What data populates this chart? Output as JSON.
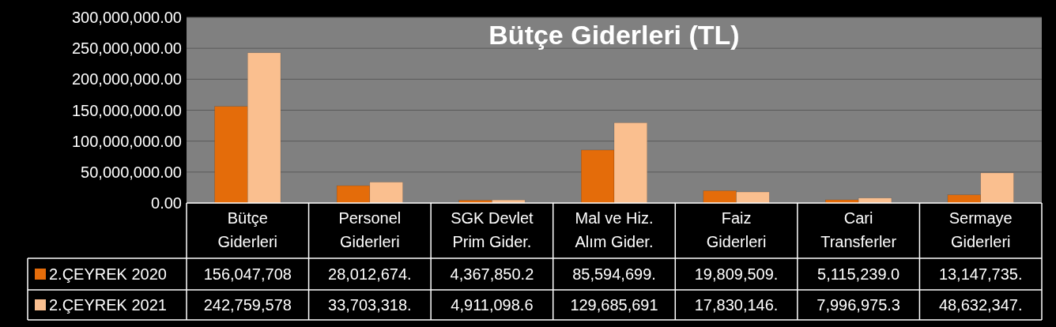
{
  "chart_data": {
    "type": "bar",
    "title": "Bütçe Giderleri (TL)",
    "categories": [
      "Bütçe\nGiderleri",
      "Personel\nGiderleri",
      "SGK Devlet\nPrim Gider.",
      "Mal ve Hiz.\nAlım Gider.",
      "Faiz\nGiderleri",
      "Cari\nTransferler",
      "Sermaye\nGiderleri"
    ],
    "series": [
      {
        "name": "2.ÇEYREK 2020",
        "color": "#e46c0a",
        "values": [
          156047708,
          28012674,
          4367850.2,
          85594699,
          19809509,
          5115239.0,
          13147735
        ],
        "value_labels": [
          "156,047,708",
          "28,012,674.",
          "4,367,850.2",
          "85,594,699.",
          "19,809,509.",
          "5,115,239.0",
          "13,147,735."
        ]
      },
      {
        "name": "2.ÇEYREK 2021",
        "color": "#fabf8f",
        "values": [
          242759578,
          33703318,
          4911098.6,
          129685691,
          17830146,
          7996975.3,
          48632347
        ],
        "value_labels": [
          "242,759,578",
          "33,703,318.",
          "4,911,098.6",
          "129,685,691",
          "17,830,146.",
          "7,996,975.3",
          "48,632,347."
        ]
      }
    ],
    "ylim": [
      0,
      300000000
    ],
    "yticks": [
      {
        "value": 0,
        "label": "0.00"
      },
      {
        "value": 50000000,
        "label": "50,000,000.00"
      },
      {
        "value": 100000000,
        "label": "100,000,000.00"
      },
      {
        "value": 150000000,
        "label": "150,000,000.00"
      },
      {
        "value": 200000000,
        "label": "200,000,000.00"
      },
      {
        "value": 250000000,
        "label": "250,000,000.00"
      },
      {
        "value": 300000000,
        "label": "300,000,000.00"
      }
    ],
    "grid": "y",
    "legend": "bottom"
  }
}
